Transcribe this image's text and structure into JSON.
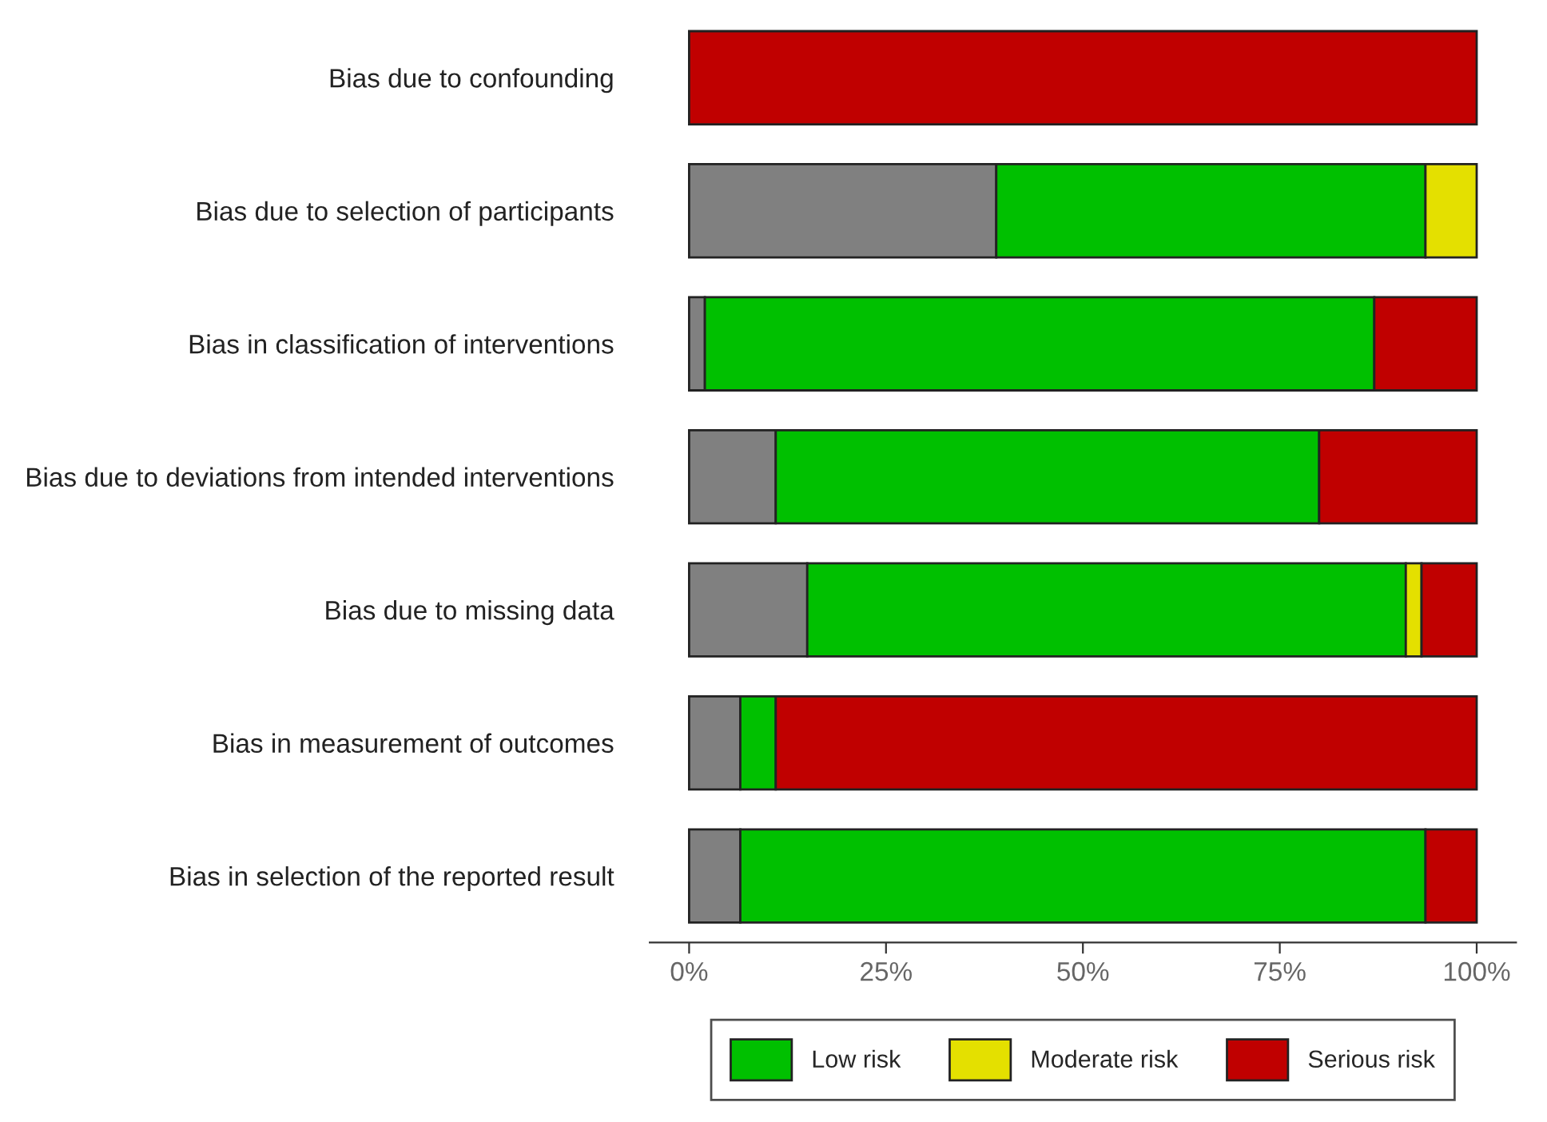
{
  "chart_data": {
    "type": "bar",
    "orientation": "horizontal",
    "stacked": true,
    "categories": [
      "Bias due to confounding",
      "Bias due to selection of participants",
      "Bias in classification of interventions",
      "Bias due to deviations from intended interventions",
      "Bias due to missing data",
      "Bias in measurement of outcomes",
      "Bias in selection of the reported result"
    ],
    "series": [
      {
        "color": "#808080",
        "values": [
          null,
          39,
          2,
          11,
          15,
          6.5,
          6.5
        ]
      },
      {
        "name": "Low risk",
        "color": "#00c000",
        "values": [
          null,
          54.5,
          85,
          69,
          76,
          4.5,
          87
        ]
      },
      {
        "name": "Moderate risk",
        "color": "#e4e000",
        "values": [
          null,
          6.5,
          null,
          null,
          2,
          null,
          null
        ]
      },
      {
        "name": "Serious risk",
        "color": "#c00000",
        "values": [
          100,
          null,
          13,
          20,
          7,
          89,
          6.5
        ]
      }
    ],
    "xlim": [
      -5,
      105
    ],
    "xticks": [
      {
        "value": 0,
        "label": "0%"
      },
      {
        "value": 25,
        "label": "25%"
      },
      {
        "value": 50,
        "label": "50%"
      },
      {
        "value": 75,
        "label": "75%"
      },
      {
        "value": 100,
        "label": "100%"
      }
    ],
    "legend": "bottom",
    "grid": false
  }
}
